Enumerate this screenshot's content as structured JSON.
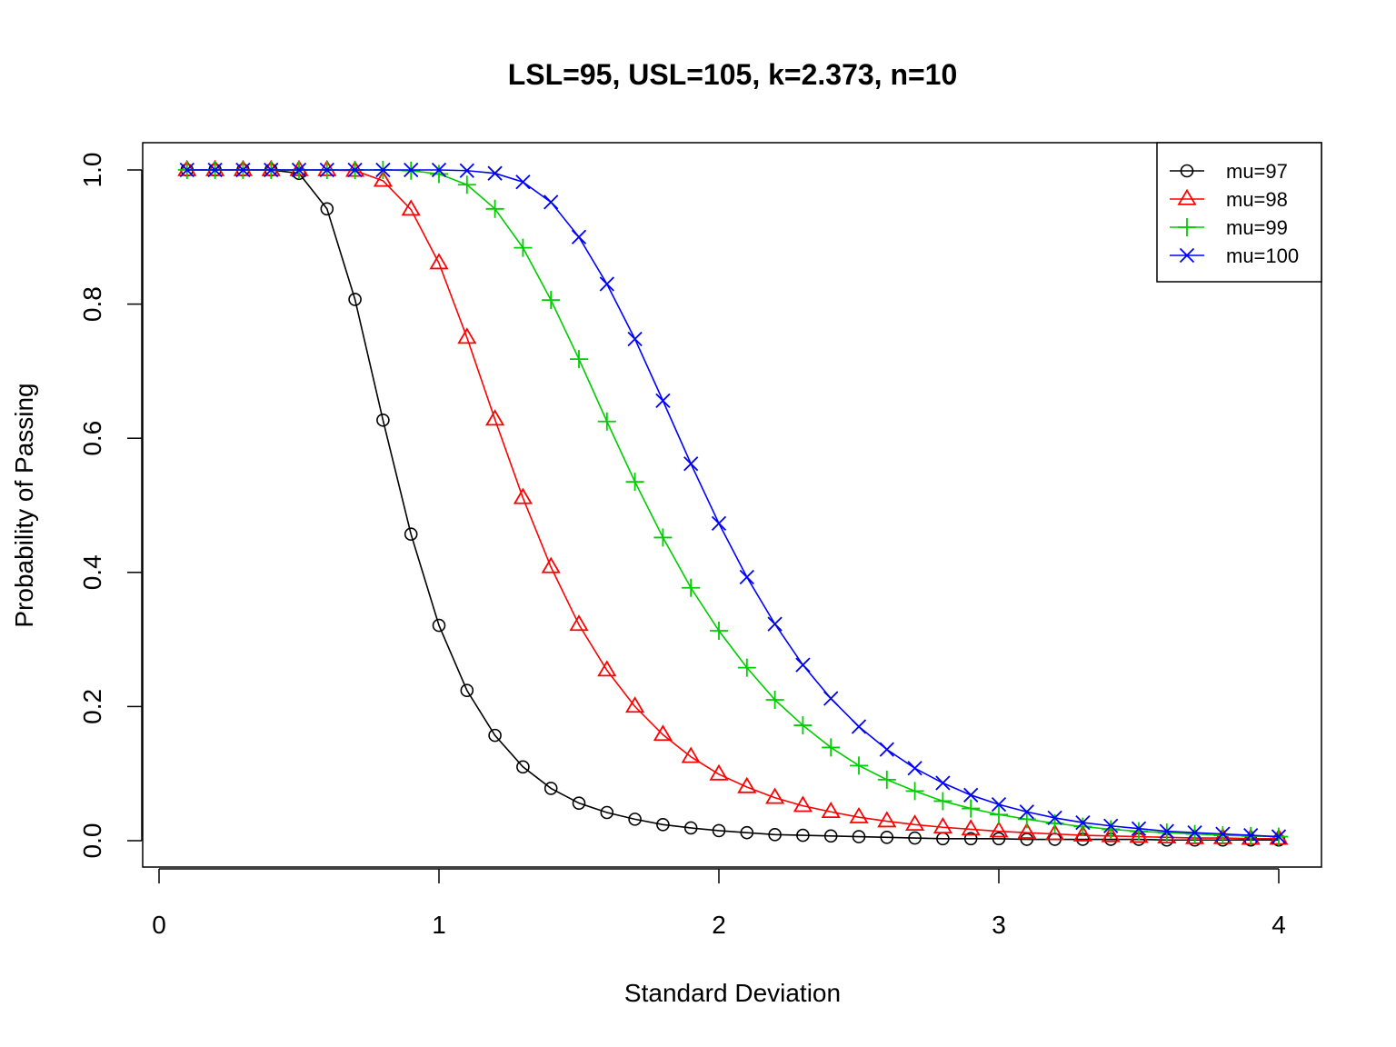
{
  "chart_data": {
    "type": "line",
    "title": "LSL=95, USL=105, k=2.373, n=10",
    "xlabel": "Standard Deviation",
    "ylabel": "Probability of Passing",
    "xlim": [
      0,
      4
    ],
    "ylim": [
      0,
      1
    ],
    "x_ticks": [
      0,
      1,
      2,
      3,
      4
    ],
    "x_tick_labels": [
      "0",
      "1",
      "2",
      "3",
      "4"
    ],
    "y_ticks": [
      0,
      0.2,
      0.4,
      0.6,
      0.8,
      1.0
    ],
    "y_tick_labels": [
      "0.0",
      "0.2",
      "0.4",
      "0.6",
      "0.8",
      "1.0"
    ],
    "grid": false,
    "legend_position": "top-right",
    "x": [
      0.1,
      0.2,
      0.3,
      0.4,
      0.5,
      0.6,
      0.7,
      0.8,
      0.9,
      1.0,
      1.1,
      1.2,
      1.3,
      1.4,
      1.5,
      1.6,
      1.7,
      1.8,
      1.9,
      2.0,
      2.1,
      2.2,
      2.3,
      2.4,
      2.5,
      2.6,
      2.7,
      2.8,
      2.9,
      3.0,
      3.1,
      3.2,
      3.3,
      3.4,
      3.5,
      3.6,
      3.7,
      3.8,
      3.9,
      4.0
    ],
    "series": [
      {
        "name": "mu=97",
        "color": "#000000",
        "marker": "circle",
        "values": [
          1,
          1,
          1,
          1,
          0.995,
          0.942,
          0.807,
          0.627,
          0.457,
          0.321,
          0.224,
          0.157,
          0.11,
          0.078,
          0.056,
          0.042,
          0.032,
          0.024,
          0.019,
          0.015,
          0.012,
          0.009,
          0.008,
          0.007,
          0.006,
          0.005,
          0.004,
          0.003,
          0.003,
          0.003,
          0.002,
          0.002,
          0.002,
          0.002,
          0.002,
          0.001,
          0.001,
          0.001,
          0.001,
          0.001
        ]
      },
      {
        "name": "mu=98",
        "color": "#FF0000",
        "marker": "triangle",
        "values": [
          1,
          1,
          1,
          1,
          1,
          1,
          0.999,
          0.984,
          0.941,
          0.861,
          0.75,
          0.628,
          0.511,
          0.408,
          0.322,
          0.254,
          0.2,
          0.158,
          0.125,
          0.099,
          0.08,
          0.064,
          0.052,
          0.043,
          0.035,
          0.029,
          0.024,
          0.02,
          0.017,
          0.014,
          0.012,
          0.01,
          0.008,
          0.007,
          0.006,
          0.005,
          0.004,
          0.004,
          0.003,
          0.003
        ]
      },
      {
        "name": "mu=99",
        "color": "#00CD00",
        "marker": "plus",
        "values": [
          1,
          1,
          1,
          1,
          1,
          1,
          1,
          1,
          0.999,
          0.994,
          0.978,
          0.942,
          0.884,
          0.806,
          0.718,
          0.625,
          0.535,
          0.452,
          0.377,
          0.313,
          0.258,
          0.21,
          0.172,
          0.139,
          0.112,
          0.091,
          0.074,
          0.059,
          0.048,
          0.039,
          0.032,
          0.026,
          0.021,
          0.017,
          0.014,
          0.012,
          0.01,
          0.008,
          0.007,
          0.006
        ]
      },
      {
        "name": "mu=100",
        "color": "#0000FF",
        "marker": "cross",
        "values": [
          1,
          1,
          1,
          1,
          1,
          1,
          1,
          1,
          1,
          1,
          0.999,
          0.995,
          0.982,
          0.952,
          0.9,
          0.83,
          0.748,
          0.656,
          0.562,
          0.473,
          0.393,
          0.323,
          0.262,
          0.212,
          0.17,
          0.136,
          0.108,
          0.086,
          0.068,
          0.054,
          0.043,
          0.034,
          0.027,
          0.022,
          0.018,
          0.014,
          0.012,
          0.01,
          0.008,
          0.006
        ]
      }
    ]
  }
}
